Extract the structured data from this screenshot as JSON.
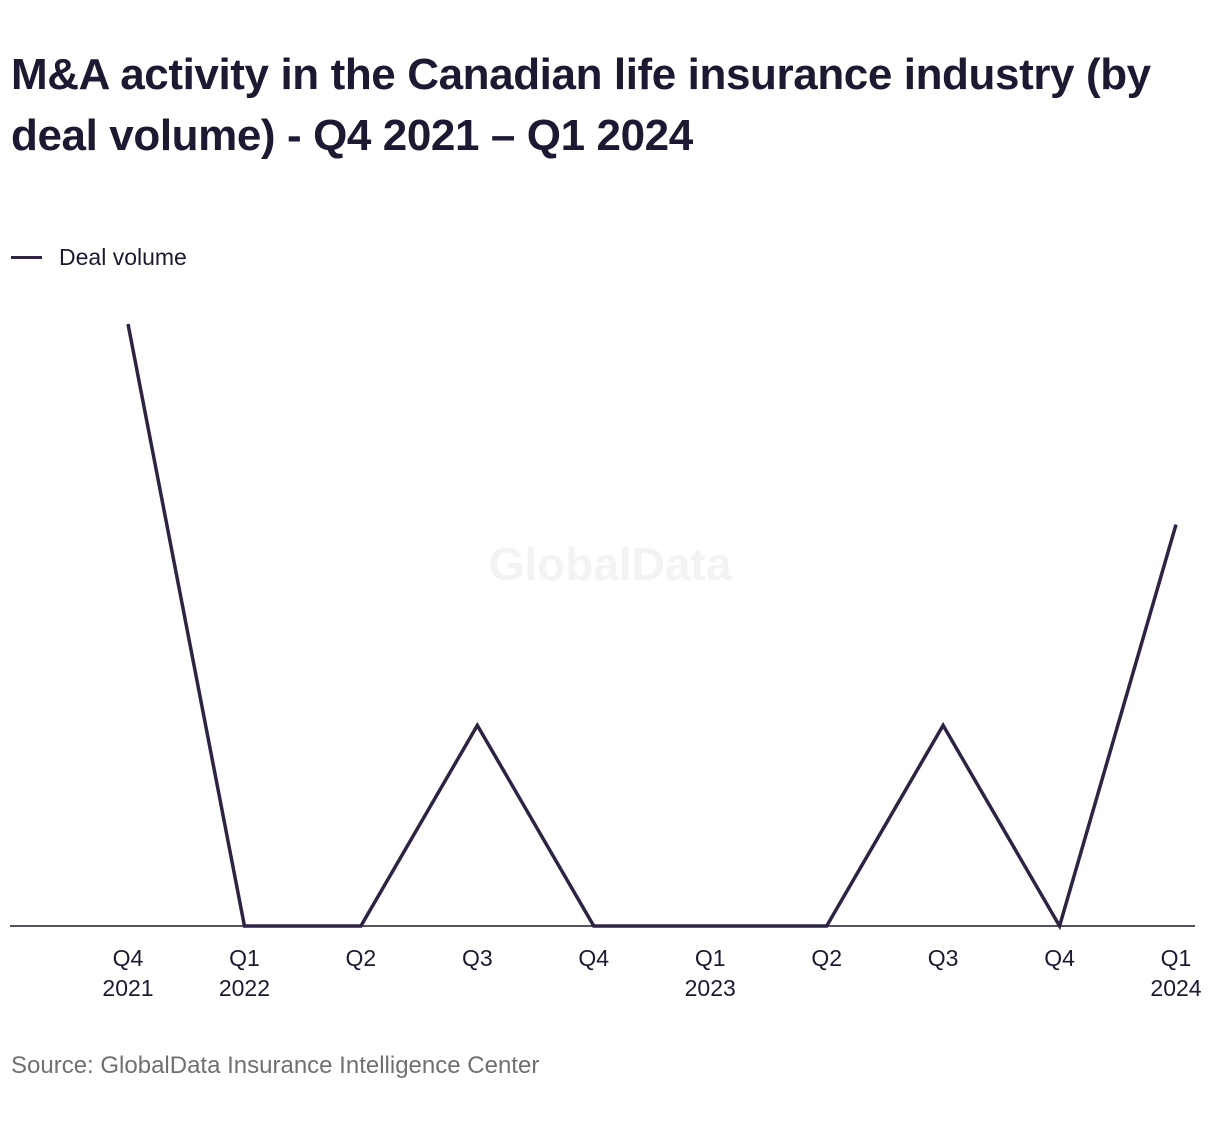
{
  "title": "M&A activity in the Canadian life insurance industry (by deal volume) - Q4 2021 – Q1 2024",
  "watermark": "GlobalData",
  "source": "Source: GlobalData Insurance Intelligence Center",
  "colors": {
    "line": "#2e2245",
    "text": "#1c1a33",
    "axis": "#1c1a33",
    "source": "#707070"
  },
  "chart_data": {
    "type": "line",
    "title": "M&A activity in the Canadian life insurance industry (by deal volume) - Q4 2021 – Q1 2024",
    "xlabel": "",
    "ylabel": "",
    "ylim": [
      0,
      3
    ],
    "grid": false,
    "legend_position": "top-left",
    "categories": [
      [
        "Q4",
        "2021"
      ],
      [
        "Q1",
        "2022"
      ],
      [
        "Q2"
      ],
      [
        "Q3"
      ],
      [
        "Q4"
      ],
      [
        "Q1",
        "2023"
      ],
      [
        "Q2"
      ],
      [
        "Q3"
      ],
      [
        "Q4"
      ],
      [
        "Q1",
        "2024"
      ]
    ],
    "series": [
      {
        "name": "Deal volume",
        "values": [
          3,
          0,
          0,
          1,
          0,
          0,
          0,
          1,
          0,
          2
        ]
      }
    ]
  }
}
